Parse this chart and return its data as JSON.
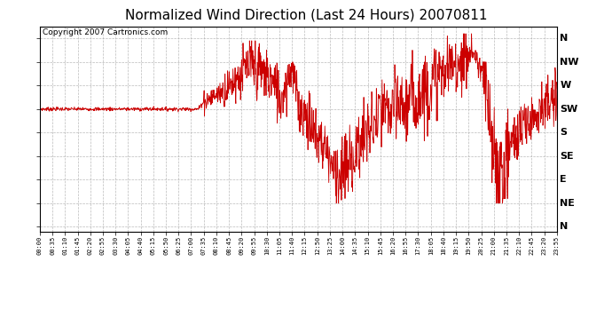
{
  "title": "Normalized Wind Direction (Last 24 Hours) 20070811",
  "copyright_text": "Copyright 2007 Cartronics.com",
  "background_color": "#ffffff",
  "line_color": "#cc0000",
  "grid_color": "#aaaaaa",
  "ytick_labels": [
    "N",
    "NW",
    "W",
    "SW",
    "S",
    "SE",
    "E",
    "NE",
    "N"
  ],
  "ytick_values": [
    8,
    7,
    6,
    5,
    4,
    3,
    2,
    1,
    0
  ],
  "ylim": [
    -0.2,
    8.5
  ],
  "xlim_minutes": [
    0,
    1440
  ],
  "xtick_step_minutes": 35,
  "title_fontsize": 11,
  "copy_fontsize": 6.5,
  "ylabel_fontsize": 8,
  "xlabel_fontsize": 5.5
}
